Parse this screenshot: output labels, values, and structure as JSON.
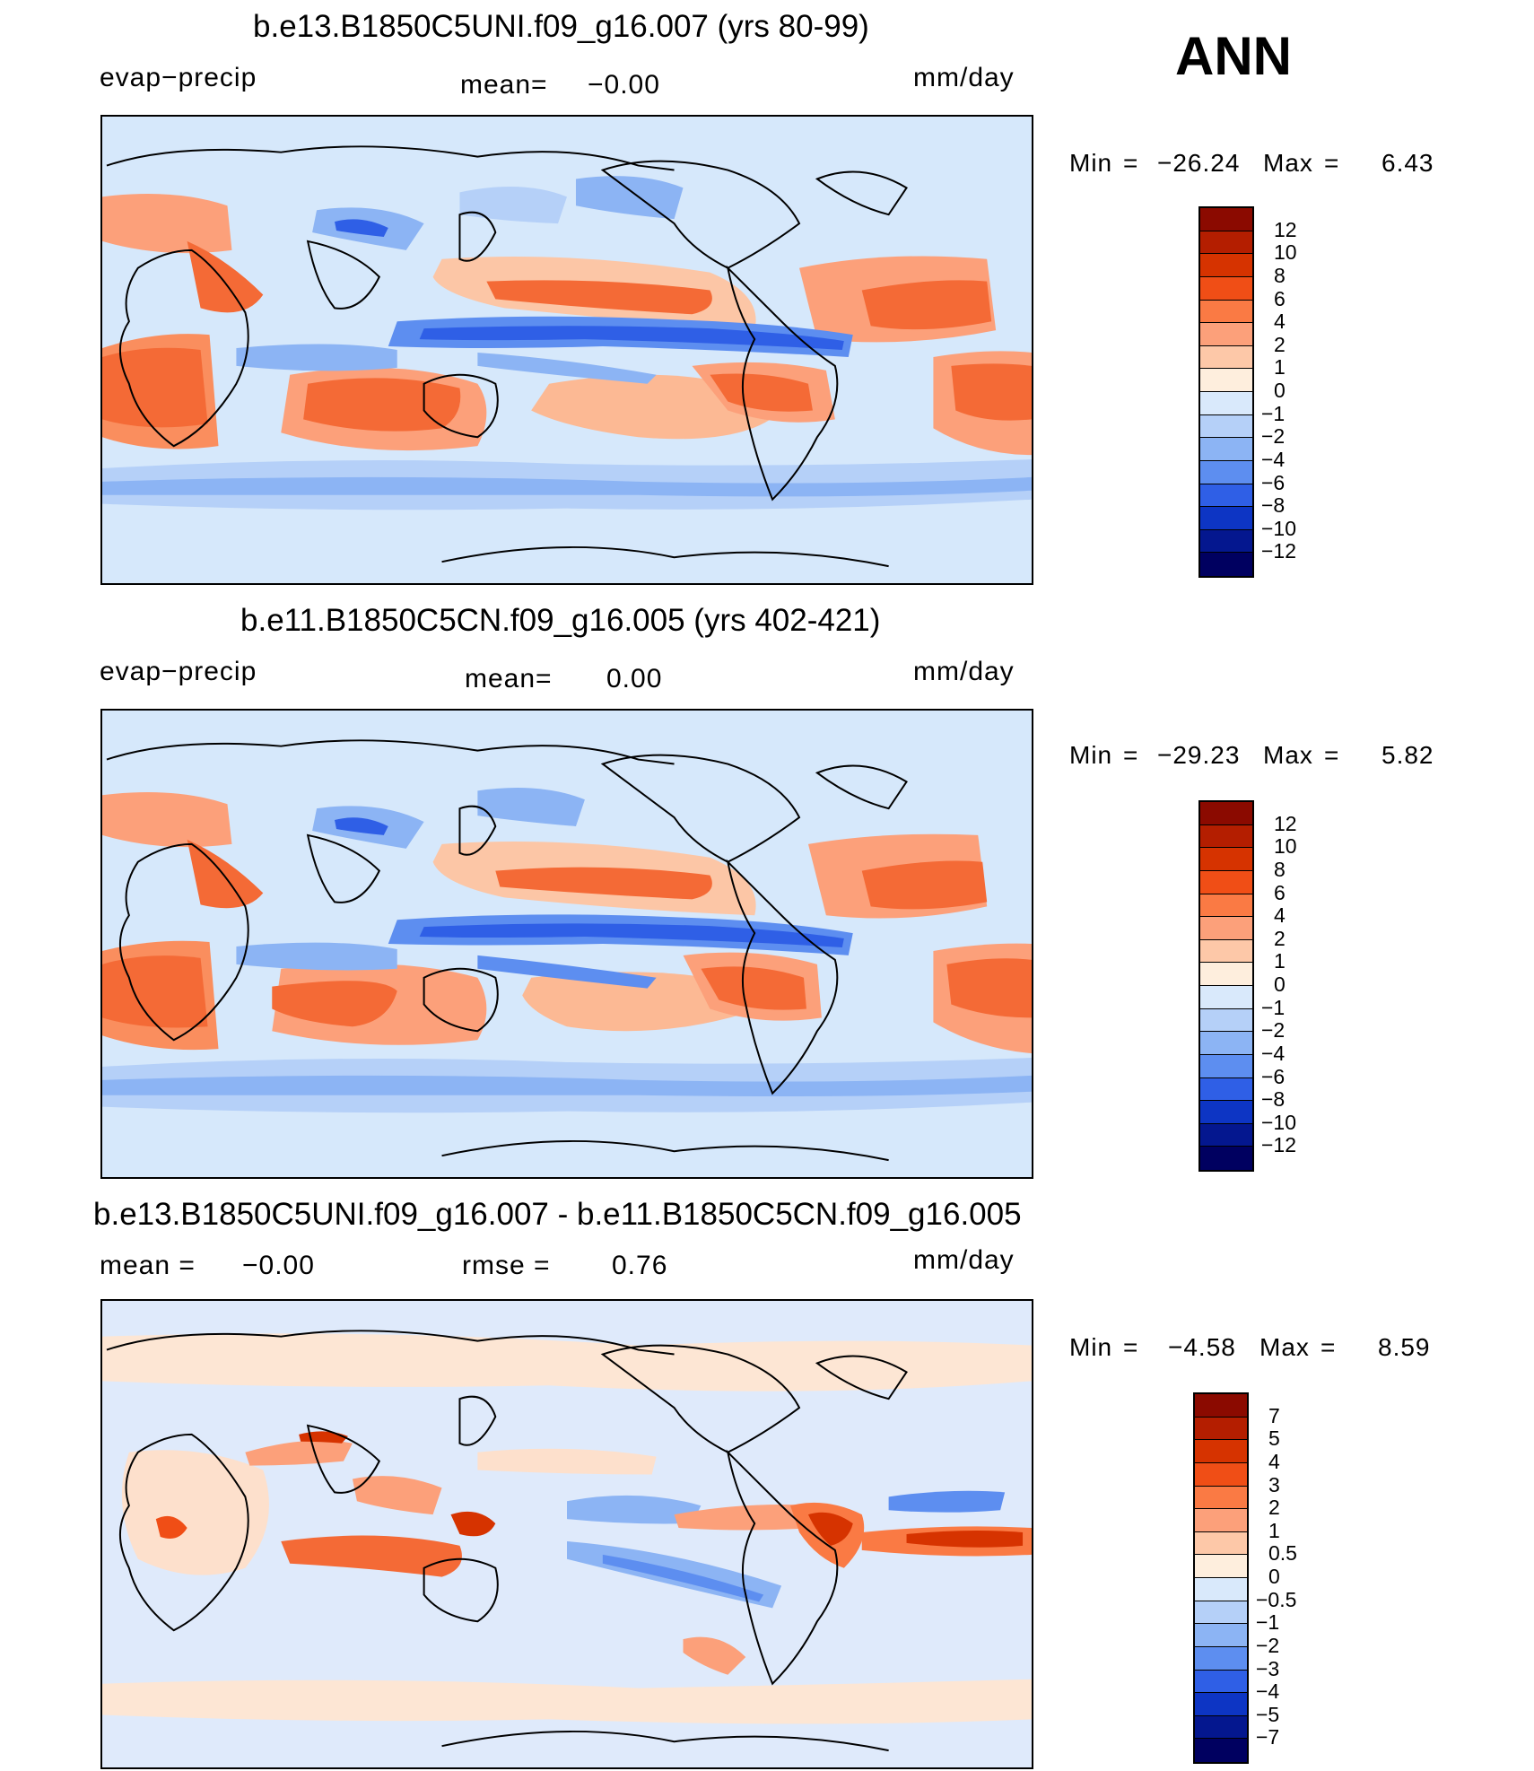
{
  "season": "ANN",
  "panels": [
    {
      "title": "b.e13.B1850C5UNI.f09_g16.007 (yrs 80-99)",
      "left_label": "evap−precip",
      "stat1_label": "mean=",
      "stat1_value": "−0.00",
      "stat2_label": "",
      "stat2_value": "",
      "units": "mm/day",
      "min_label": "Min",
      "min_value": "−26.24",
      "max_label": "Max",
      "max_value": "6.43",
      "colorbar": {
        "labels": [
          "12",
          "10",
          "8",
          "6",
          "4",
          "2",
          "1",
          "0",
          "−1",
          "−2",
          "−4",
          "−6",
          "−8",
          "−10",
          "−12"
        ],
        "colors": [
          "#8b0a00",
          "#b41e00",
          "#d63300",
          "#f04e16",
          "#fa7a44",
          "#fca07a",
          "#fdc8a8",
          "#feeedd",
          "#d9e9fb",
          "#b5d0f8",
          "#8cb4f4",
          "#5d8ef0",
          "#2f5fe6",
          "#0d35c4",
          "#04178f",
          "#000060"
        ]
      }
    },
    {
      "title": "b.e11.B1850C5CN.f09_g16.005 (yrs 402-421)",
      "left_label": "evap−precip",
      "stat1_label": "mean=",
      "stat1_value": "0.00",
      "stat2_label": "",
      "stat2_value": "",
      "units": "mm/day",
      "min_label": "Min",
      "min_value": "−29.23",
      "max_label": "Max",
      "max_value": "5.82",
      "colorbar": {
        "labels": [
          "12",
          "10",
          "8",
          "6",
          "4",
          "2",
          "1",
          "0",
          "−1",
          "−2",
          "−4",
          "−6",
          "−8",
          "−10",
          "−12"
        ],
        "colors": [
          "#8b0a00",
          "#b41e00",
          "#d63300",
          "#f04e16",
          "#fa7a44",
          "#fca07a",
          "#fdc8a8",
          "#feeedd",
          "#d9e9fb",
          "#b5d0f8",
          "#8cb4f4",
          "#5d8ef0",
          "#2f5fe6",
          "#0d35c4",
          "#04178f",
          "#000060"
        ]
      }
    },
    {
      "title": "b.e13.B1850C5UNI.f09_g16.007 - b.e11.B1850C5CN.f09_g16.005",
      "left_label": "mean  =",
      "stat1_label": "",
      "stat1_value": "−0.00",
      "stat2_label": "rmse  =",
      "stat2_value": "0.76",
      "units": "mm/day",
      "min_label": "Min",
      "min_value": "−4.58",
      "max_label": "Max",
      "max_value": "8.59",
      "colorbar": {
        "labels": [
          "7",
          "5",
          "4",
          "3",
          "2",
          "1",
          "0.5",
          "0",
          "−0.5",
          "−1",
          "−2",
          "−3",
          "−4",
          "−5",
          "−7"
        ],
        "colors": [
          "#8b0a00",
          "#b41e00",
          "#d63300",
          "#f04e16",
          "#fa7a44",
          "#fca07a",
          "#fdc8a8",
          "#feeedd",
          "#d9e9fb",
          "#b5d0f8",
          "#8cb4f4",
          "#5d8ef0",
          "#2f5fe6",
          "#0d35c4",
          "#04178f",
          "#000060"
        ]
      }
    }
  ]
}
